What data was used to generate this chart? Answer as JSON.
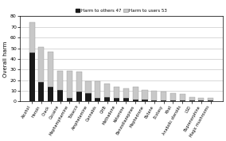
{
  "categories": [
    "Alcohol",
    "Heroin",
    "Crack",
    "Cocaine",
    "Mephamphamine",
    "Tobacco",
    "Amphetamine",
    "Cannabis",
    "GHB",
    "Methadone",
    "Ketamine",
    "Benzodiazepines",
    "Mephedrone",
    "Butane",
    "Ecstasy",
    "Khat",
    "Anabolic steroids",
    "LSD",
    "Buprenorphine",
    "Magic mushrooms"
  ],
  "harm_to_others": [
    46,
    18,
    14,
    11,
    3,
    9,
    8,
    3,
    4,
    3,
    3,
    2,
    2,
    1,
    1,
    1,
    1,
    1,
    1,
    1
  ],
  "harm_to_users": [
    28,
    33,
    33,
    18,
    26,
    19,
    11,
    16,
    13,
    11,
    9,
    12,
    9,
    9,
    8,
    7,
    6,
    3,
    2,
    2
  ],
  "harm_to_others_label": "Harm to others 47",
  "harm_to_users_label": "Harm to users 53",
  "ylabel": "Overall harm",
  "ylim": [
    0,
    80
  ],
  "yticks": [
    0,
    10,
    20,
    30,
    40,
    50,
    60,
    70,
    80
  ],
  "bar_color_others": "#1a1a1a",
  "bar_color_users": "#c8c8c8",
  "bg_color": "#ffffff",
  "figsize": [
    2.84,
    1.77
  ],
  "dpi": 100
}
